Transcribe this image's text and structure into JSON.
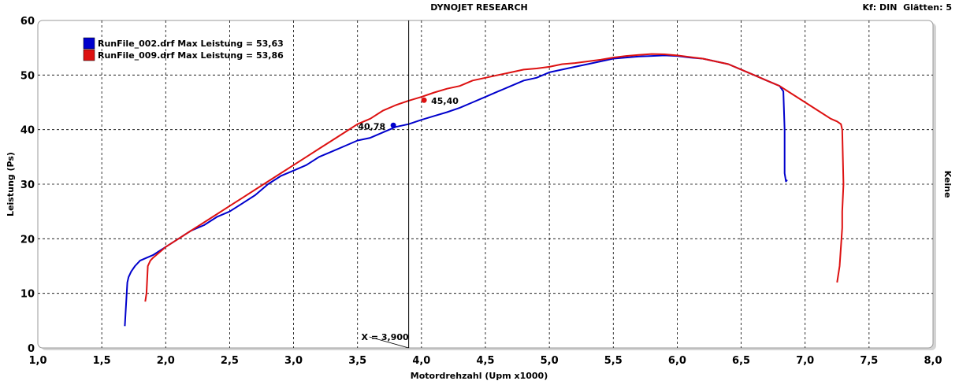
{
  "header": {
    "title": "DYNOJET RESEARCH",
    "right_info": "Kf: DIN  Glätten: 5"
  },
  "side_label": "Keine",
  "colors": {
    "series_1": "#0000cc",
    "series_2": "#dd1111",
    "grid": "#000000",
    "plot_bg": "#ffffff",
    "frame_shadow": "#d0d0d0"
  },
  "cursor": {
    "label": "X = 3,900",
    "x": 3.9,
    "markers": [
      {
        "series": 0,
        "x": 3.78,
        "y": 40.78,
        "label": "40,78"
      },
      {
        "series": 1,
        "x": 4.02,
        "y": 45.4,
        "label": "45,40"
      }
    ]
  },
  "chart_data": {
    "type": "line",
    "title": "DYNOJET RESEARCH",
    "xlabel": "Motordrehzahl (Upm x1000)",
    "ylabel": "Leistung (Ps)",
    "xlim": [
      1.0,
      8.0
    ],
    "ylim": [
      0,
      60
    ],
    "xticks": [
      "1,0",
      "1,5",
      "2,0",
      "2,5",
      "3,0",
      "3,5",
      "4,0",
      "4,5",
      "5,0",
      "5,5",
      "6,0",
      "6,5",
      "7,0",
      "7,5",
      "8,0"
    ],
    "yticks": [
      "0",
      "10",
      "20",
      "30",
      "40",
      "50",
      "60"
    ],
    "grid": true,
    "legend_position": "top-left",
    "series": [
      {
        "name": "RunFile_002.drf Max Leistung = 53,63",
        "x": [
          1.68,
          1.69,
          1.7,
          1.71,
          1.73,
          1.76,
          1.8,
          1.85,
          1.9,
          2.0,
          2.1,
          2.2,
          2.3,
          2.4,
          2.5,
          2.6,
          2.7,
          2.8,
          2.9,
          3.0,
          3.1,
          3.2,
          3.3,
          3.4,
          3.5,
          3.6,
          3.7,
          3.8,
          3.9,
          4.0,
          4.1,
          4.2,
          4.3,
          4.4,
          4.5,
          4.6,
          4.7,
          4.8,
          4.9,
          5.0,
          5.1,
          5.2,
          5.3,
          5.4,
          5.5,
          5.6,
          5.7,
          5.8,
          5.9,
          6.0,
          6.1,
          6.2,
          6.3,
          6.4,
          6.5,
          6.6,
          6.7,
          6.8,
          6.83,
          6.84,
          6.84,
          6.85,
          6.86
        ],
        "y": [
          4,
          8,
          12,
          13,
          14,
          15,
          16,
          16.5,
          17,
          18.5,
          20,
          21.5,
          22.5,
          24,
          25,
          26.5,
          28,
          30,
          31.5,
          32.5,
          33.5,
          35,
          36,
          37,
          38,
          38.5,
          39.5,
          40.5,
          41,
          41.8,
          42.5,
          43.2,
          44,
          45,
          46,
          47,
          48,
          49,
          49.5,
          50.5,
          51,
          51.5,
          52,
          52.5,
          53,
          53.2,
          53.4,
          53.5,
          53.6,
          53.5,
          53.2,
          53,
          52.5,
          52,
          51,
          50,
          49,
          48,
          47,
          40,
          32,
          30.5,
          30.8
        ]
      },
      {
        "name": "RunFile_009.drf Max Leistung = 53,86",
        "x": [
          1.84,
          1.85,
          1.86,
          1.88,
          1.9,
          2.0,
          2.1,
          2.2,
          2.3,
          2.4,
          2.5,
          2.6,
          2.7,
          2.8,
          2.9,
          3.0,
          3.1,
          3.2,
          3.3,
          3.4,
          3.5,
          3.6,
          3.7,
          3.8,
          3.9,
          4.0,
          4.1,
          4.2,
          4.3,
          4.4,
          4.5,
          4.6,
          4.7,
          4.8,
          4.9,
          5.0,
          5.1,
          5.2,
          5.3,
          5.4,
          5.5,
          5.6,
          5.7,
          5.8,
          5.9,
          6.0,
          6.1,
          6.2,
          6.3,
          6.4,
          6.5,
          6.6,
          6.7,
          6.8,
          6.9,
          7.0,
          7.1,
          7.2,
          7.25,
          7.28,
          7.29,
          7.3,
          7.29,
          7.29,
          7.27,
          7.25
        ],
        "y": [
          8.5,
          10,
          15,
          16,
          16.5,
          18.5,
          20,
          21.5,
          23,
          24.5,
          26,
          27.5,
          29,
          30.5,
          32,
          33.5,
          35,
          36.5,
          38,
          39.5,
          41,
          42,
          43.5,
          44.5,
          45.3,
          46,
          46.8,
          47.5,
          48,
          49,
          49.5,
          50,
          50.5,
          51,
          51.2,
          51.5,
          52,
          52.2,
          52.5,
          52.8,
          53.2,
          53.5,
          53.7,
          53.86,
          53.8,
          53.6,
          53.3,
          53,
          52.5,
          52,
          51,
          50,
          49,
          48,
          46.5,
          45,
          43.5,
          42,
          41.5,
          41,
          40,
          30,
          25,
          22,
          15,
          12
        ]
      }
    ]
  }
}
